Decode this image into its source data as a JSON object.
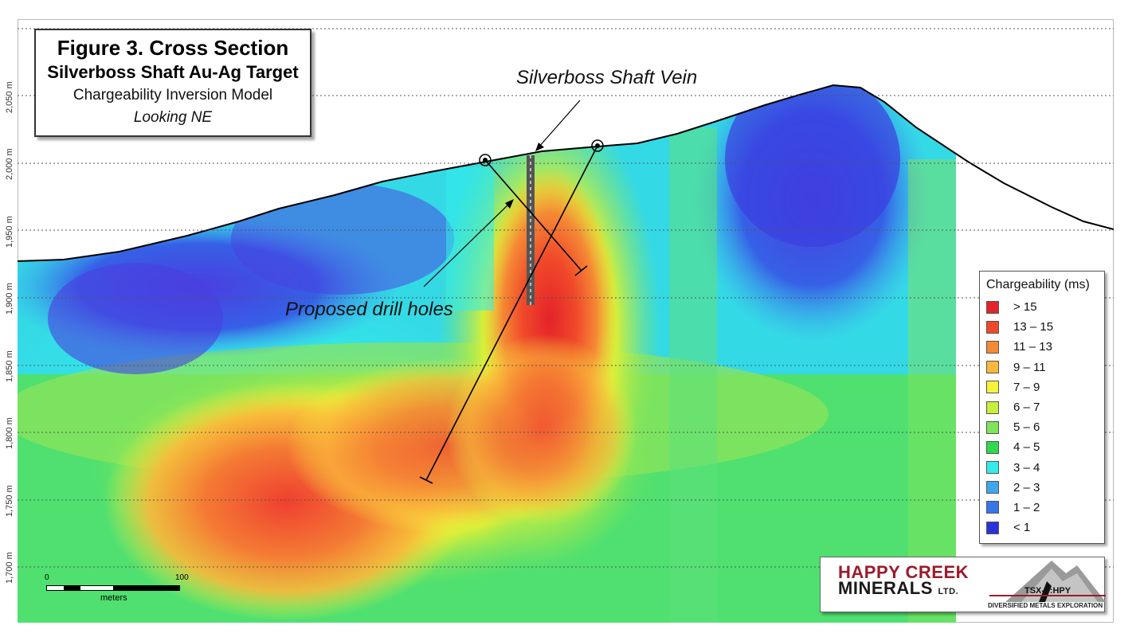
{
  "title": {
    "line1": "Figure 3. Cross Section",
    "line2": "Silverboss Shaft Au-Ag Target",
    "line3": "Chargeability Inversion Model",
    "line4": "Looking NE"
  },
  "elevation_axis": {
    "unit": "m",
    "labels": [
      "2,050 m",
      "2,000 m",
      "1,950 m",
      "1,900 m",
      "1,850 m",
      "1,800 m",
      "1,750 m",
      "1,700 m"
    ]
  },
  "annotations": {
    "vein": "Silverboss Shaft Vein",
    "drill_holes": "Proposed drill holes"
  },
  "legend": {
    "title": "Chargeability (ms)",
    "items": [
      {
        "label": "> 15",
        "color": "#e4232a"
      },
      {
        "label": "13 – 15",
        "color": "#f0492a"
      },
      {
        "label": "11 – 13",
        "color": "#f58a35"
      },
      {
        "label": "9 – 11",
        "color": "#fbb83a"
      },
      {
        "label": "7 – 9",
        "color": "#f7f23a"
      },
      {
        "label": "6 – 7",
        "color": "#c8ef3a"
      },
      {
        "label": "5 – 6",
        "color": "#7fe45a"
      },
      {
        "label": "4 – 5",
        "color": "#2fd94f"
      },
      {
        "label": "3 – 4",
        "color": "#33ecea"
      },
      {
        "label": "2 – 3",
        "color": "#3fa6ee"
      },
      {
        "label": "1 – 2",
        "color": "#3676e8"
      },
      {
        "label": "< 1",
        "color": "#2a33d9"
      }
    ]
  },
  "scale_bar": {
    "start": "0",
    "end": "100",
    "units": "meters"
  },
  "logo": {
    "line1": "HAPPY CREEK",
    "line2": "MINERALS",
    "line2_suffix": "LTD.",
    "ticker": "TSX-V:HPY",
    "tagline": "DIVERSIFIED METALS EXPLORATION"
  }
}
